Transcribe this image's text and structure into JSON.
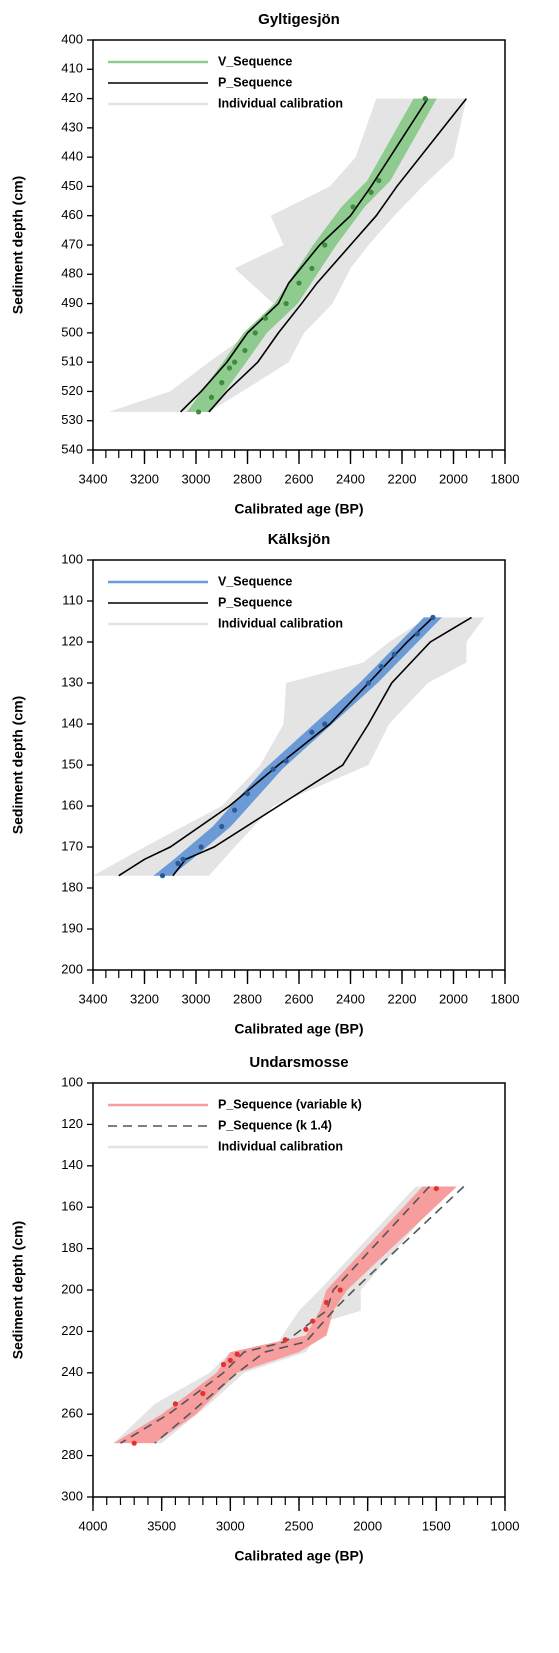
{
  "chart_data": [
    {
      "type": "line",
      "title": "Gyltigesjön",
      "xlabel": "Calibrated age (BP)",
      "ylabel": "Sediment depth (cm)",
      "xlim": [
        3400,
        1800
      ],
      "xticks": [
        3400,
        3200,
        3000,
        2800,
        2600,
        2400,
        2200,
        2000,
        1800
      ],
      "xminor": 50,
      "ylim": [
        540,
        400
      ],
      "yticks": [
        400,
        410,
        420,
        430,
        440,
        450,
        460,
        470,
        480,
        490,
        500,
        510,
        520,
        530,
        540
      ],
      "legend": "upper left",
      "series": [
        {
          "name": "V_Sequence",
          "style": "band",
          "color": "#8fca8f",
          "depth": [
            420,
            448,
            457,
            470,
            490,
            500,
            510,
            527
          ],
          "older": [
            2155,
            2335,
            2435,
            2545,
            2695,
            2815,
            2895,
            3035
          ],
          "younger": [
            2065,
            2245,
            2345,
            2455,
            2605,
            2725,
            2805,
            2945
          ],
          "point_color": "#3f8a3f",
          "points": {
            "depth": [
              420,
              448,
              452,
              457,
              470,
              478,
              483,
              490,
              495,
              500,
              506,
              510,
              512,
              517,
              522,
              527
            ],
            "age": [
              2110,
              2290,
              2320,
              2390,
              2500,
              2550,
              2600,
              2650,
              2730,
              2770,
              2810,
              2850,
              2870,
              2900,
              2940,
              2990
            ]
          }
        },
        {
          "name": "P_Sequence",
          "style": "lines",
          "color": "#000000",
          "depth": [
            420,
            450,
            460,
            470,
            483,
            490,
            500,
            510,
            520,
            527
          ],
          "older": [
            2100,
            2320,
            2400,
            2520,
            2640,
            2680,
            2800,
            2880,
            2980,
            3060
          ],
          "younger": [
            1950,
            2220,
            2300,
            2400,
            2530,
            2590,
            2680,
            2760,
            2880,
            2950
          ]
        },
        {
          "name": "Individual calibration",
          "style": "band",
          "color": "#e4e4e4",
          "depth": [
            420,
            440,
            450,
            460,
            470,
            478,
            490,
            500,
            510,
            520,
            527
          ],
          "older": [
            2300,
            2380,
            2480,
            2710,
            2660,
            2850,
            2700,
            2790,
            2950,
            3100,
            3340
          ],
          "younger": [
            1950,
            2000,
            2120,
            2230,
            2330,
            2400,
            2470,
            2580,
            2640,
            2820,
            2950
          ]
        }
      ]
    },
    {
      "type": "line",
      "title": "Kälksjön",
      "xlabel": "Calibrated age (BP)",
      "ylabel": "Sediment depth (cm)",
      "xlim": [
        3400,
        1800
      ],
      "xticks": [
        3400,
        3200,
        3000,
        2800,
        2600,
        2400,
        2200,
        2000,
        1800
      ],
      "xminor": 50,
      "ylim": [
        200,
        100
      ],
      "yticks": [
        100,
        110,
        120,
        130,
        140,
        150,
        160,
        170,
        180,
        190,
        200
      ],
      "legend": "upper left",
      "series": [
        {
          "name": "V_Sequence",
          "style": "band",
          "color": "#6b9ad6",
          "depth": [
            114,
            130,
            151,
            165,
            173,
            177
          ],
          "older": [
            2115,
            2365,
            2735,
            2935,
            3085,
            3165
          ],
          "younger": [
            2045,
            2295,
            2665,
            2865,
            3015,
            3095
          ],
          "point_color": "#2c5a93",
          "points": {
            "depth": [
              114,
              118,
              123,
              126,
              130,
              140,
              142,
              149,
              151,
              157,
              161,
              165,
              170,
              173,
              174,
              177
            ],
            "age": [
              2080,
              2140,
              2230,
              2280,
              2330,
              2500,
              2550,
              2650,
              2700,
              2800,
              2850,
              2900,
              2980,
              3050,
              3070,
              3130
            ]
          }
        },
        {
          "name": "P_Sequence",
          "style": "lines",
          "color": "#000000",
          "depth": [
            114,
            120,
            130,
            140,
            150,
            160,
            170,
            173,
            177
          ],
          "older": [
            2080,
            2180,
            2330,
            2480,
            2680,
            2870,
            3100,
            3200,
            3300
          ],
          "younger": [
            1930,
            2090,
            2240,
            2330,
            2430,
            2680,
            2930,
            3040,
            3090
          ]
        },
        {
          "name": "Individual calibration",
          "style": "band",
          "color": "#e4e4e4",
          "depth": [
            114,
            120,
            125,
            130,
            140,
            150,
            160,
            170,
            177
          ],
          "older": [
            2100,
            2250,
            2350,
            2650,
            2660,
            2750,
            2900,
            3200,
            3400
          ],
          "younger": [
            1880,
            1950,
            1950,
            2100,
            2250,
            2330,
            2700,
            2850,
            2950
          ]
        }
      ]
    },
    {
      "type": "line",
      "title": "Undarsmosse",
      "xlabel": "Calibrated age (BP)",
      "ylabel": "Sediment depth (cm)",
      "xlim": [
        4000,
        1000
      ],
      "xticks": [
        4000,
        3500,
        3000,
        2500,
        2000,
        1500,
        1000
      ],
      "xminor": 100,
      "ylim": [
        300,
        100
      ],
      "yticks": [
        100,
        120,
        140,
        160,
        180,
        200,
        220,
        240,
        260,
        280,
        300
      ],
      "legend": "upper left",
      "series": [
        {
          "name": "P_Sequence (variable k)",
          "style": "band",
          "color": "#f79d9d",
          "depth": [
            150,
            200,
            210,
            222,
            230,
            240,
            260,
            274
          ],
          "older": [
            1600,
            2300,
            2350,
            2450,
            3000,
            3100,
            3500,
            3850
          ],
          "younger": [
            1350,
            2150,
            2250,
            2300,
            2500,
            2950,
            3250,
            3550
          ],
          "point_color": "#e53030",
          "points": {
            "depth": [
              151,
              200,
              206,
              215,
              219,
              224,
              231,
              234,
              236,
              250,
              255,
              274
            ],
            "age": [
              1500,
              2200,
              2300,
              2400,
              2450,
              2600,
              2950,
              3000,
              3050,
              3200,
              3400,
              3700
            ]
          }
        },
        {
          "name": "P_Sequence (k 1.4)",
          "style": "dashed-lines",
          "color": "#555555",
          "depth": [
            150,
            200,
            210,
            225,
            230,
            240,
            260,
            274
          ],
          "older": [
            1550,
            2250,
            2300,
            2600,
            2900,
            3050,
            3450,
            3800
          ],
          "younger": [
            1300,
            2100,
            2250,
            2450,
            2750,
            2950,
            3300,
            3550
          ]
        },
        {
          "name": "Individual calibration",
          "style": "band",
          "color": "#e4e4e4",
          "depth": [
            150,
            200,
            210,
            215,
            225,
            230,
            240,
            255,
            274
          ],
          "older": [
            1650,
            2350,
            2500,
            2550,
            2650,
            3000,
            3150,
            3550,
            3850
          ],
          "younger": [
            1400,
            2050,
            2050,
            2300,
            2400,
            2450,
            2900,
            3150,
            3500
          ]
        }
      ]
    }
  ]
}
